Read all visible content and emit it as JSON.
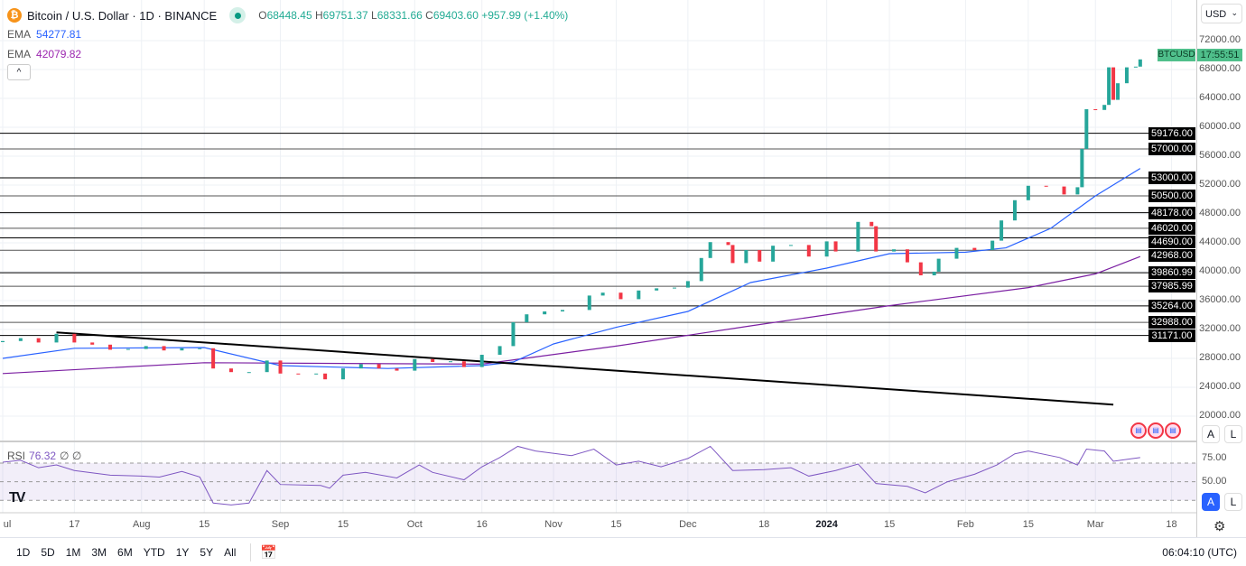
{
  "header": {
    "symbol_title": "Bitcoin / U.S. Dollar · 1D · BINANCE",
    "open_label": "O",
    "open": "68448.45",
    "high_label": "H",
    "high": "69751.37",
    "low_label": "L",
    "low": "68331.66",
    "close_label": "C",
    "close": "69403.60",
    "change": "+957.99 (+1.40%)",
    "ema1_label": "EMA",
    "ema1_value": "54277.81",
    "ema2_label": "EMA",
    "ema2_value": "42079.82",
    "collapse_icon": "chevron-up-icon",
    "collapse_glyph": "^"
  },
  "price_axis": {
    "currency": "USD",
    "currency_chevron": "⌄",
    "symbol_badge": "BTCUSD",
    "countdown": "17:55:51",
    "auto_label": "A",
    "log_label": "L"
  },
  "rsi": {
    "label": "RSI",
    "value": "76.32",
    "extra1": "∅",
    "extra2": "∅",
    "ticks": [
      "75.00",
      "50.00"
    ],
    "auto_label": "A",
    "log_label": "L"
  },
  "time_axis": {
    "labels": [
      {
        "text": "ul",
        "date": "2023-07-01"
      },
      {
        "text": "17",
        "date": "2023-07-17"
      },
      {
        "text": "Aug",
        "date": "2023-08-01"
      },
      {
        "text": "15",
        "date": "2023-08-15"
      },
      {
        "text": "Sep",
        "date": "2023-09-01"
      },
      {
        "text": "15",
        "date": "2023-09-15"
      },
      {
        "text": "Oct",
        "date": "2023-10-01"
      },
      {
        "text": "16",
        "date": "2023-10-16"
      },
      {
        "text": "Nov",
        "date": "2023-11-01"
      },
      {
        "text": "15",
        "date": "2023-11-15"
      },
      {
        "text": "Dec",
        "date": "2023-12-01"
      },
      {
        "text": "18",
        "date": "2023-12-18"
      },
      {
        "text": "2024",
        "date": "2024-01-01",
        "bold": true
      },
      {
        "text": "15",
        "date": "2024-01-15"
      },
      {
        "text": "Feb",
        "date": "2024-02-01"
      },
      {
        "text": "15",
        "date": "2024-02-15"
      },
      {
        "text": "Mar",
        "date": "2024-03-01"
      },
      {
        "text": "18",
        "date": "2024-03-18"
      }
    ]
  },
  "toolbar": {
    "ranges": [
      "1D",
      "5D",
      "1M",
      "3M",
      "6M",
      "YTD",
      "1Y",
      "5Y",
      "All"
    ],
    "date_range_icon": "calendar-goto-icon",
    "clock": "06:04:10 (UTC)"
  },
  "colors": {
    "up": "#26a69a",
    "down": "#f23645",
    "ema_fast": "#2962ff",
    "ema_slow": "#7b1fa2",
    "rsi": "#7e57c2",
    "trendline": "#000000"
  },
  "chart_data": {
    "type": "candlestick",
    "ylim": [
      20000,
      74000
    ],
    "price_ticks": [
      "72000.00",
      "68000.00",
      "64000.00",
      "60000.00",
      "56000.00",
      "52000.00",
      "48000.00",
      "44000.00",
      "40000.00",
      "36000.00",
      "32000.00",
      "28000.00",
      "24000.00",
      "20000.00"
    ],
    "closes": [
      [
        "2023-07-01",
        30400
      ],
      [
        "2023-07-05",
        30800
      ],
      [
        "2023-07-09",
        30200
      ],
      [
        "2023-07-13",
        31400
      ],
      [
        "2023-07-17",
        30200
      ],
      [
        "2023-07-21",
        29900
      ],
      [
        "2023-07-25",
        29200
      ],
      [
        "2023-07-29",
        29300
      ],
      [
        "2023-08-02",
        29700
      ],
      [
        "2023-08-06",
        29100
      ],
      [
        "2023-08-10",
        29400
      ],
      [
        "2023-08-14",
        29400
      ],
      [
        "2023-08-17",
        26600
      ],
      [
        "2023-08-21",
        26100
      ],
      [
        "2023-08-25",
        26100
      ],
      [
        "2023-08-29",
        27700
      ],
      [
        "2023-09-01",
        25900
      ],
      [
        "2023-09-05",
        25800
      ],
      [
        "2023-09-09",
        25900
      ],
      [
        "2023-09-11",
        25100
      ],
      [
        "2023-09-15",
        26600
      ],
      [
        "2023-09-19",
        27200
      ],
      [
        "2023-09-23",
        26600
      ],
      [
        "2023-09-27",
        26300
      ],
      [
        "2023-10-01",
        27900
      ],
      [
        "2023-10-05",
        27500
      ],
      [
        "2023-10-09",
        27600
      ],
      [
        "2023-10-12",
        26800
      ],
      [
        "2023-10-16",
        28500
      ],
      [
        "2023-10-20",
        29700
      ],
      [
        "2023-10-23",
        33000
      ],
      [
        "2023-10-26",
        34100
      ],
      [
        "2023-10-30",
        34500
      ],
      [
        "2023-11-03",
        34700
      ],
      [
        "2023-11-09",
        36700
      ],
      [
        "2023-11-12",
        37100
      ],
      [
        "2023-11-16",
        36200
      ],
      [
        "2023-11-20",
        37400
      ],
      [
        "2023-11-24",
        37700
      ],
      [
        "2023-11-28",
        37800
      ],
      [
        "2023-12-01",
        38700
      ],
      [
        "2023-12-04",
        41900
      ],
      [
        "2023-12-06",
        44100
      ],
      [
        "2023-12-10",
        43700
      ],
      [
        "2023-12-11",
        41200
      ],
      [
        "2023-12-14",
        43000
      ],
      [
        "2023-12-17",
        41400
      ],
      [
        "2023-12-20",
        43600
      ],
      [
        "2023-12-24",
        43700
      ],
      [
        "2023-12-28",
        42100
      ],
      [
        "2024-01-01",
        44200
      ],
      [
        "2024-01-03",
        42800
      ],
      [
        "2024-01-08",
        46900
      ],
      [
        "2024-01-11",
        46300
      ],
      [
        "2024-01-12",
        42800
      ],
      [
        "2024-01-16",
        43100
      ],
      [
        "2024-01-19",
        41300
      ],
      [
        "2024-01-22",
        39500
      ],
      [
        "2024-01-25",
        40000
      ],
      [
        "2024-01-26",
        41800
      ],
      [
        "2024-01-30",
        43300
      ],
      [
        "2024-02-03",
        43000
      ],
      [
        "2024-02-07",
        44300
      ],
      [
        "2024-02-09",
        47100
      ],
      [
        "2024-02-12",
        49900
      ],
      [
        "2024-02-15",
        51900
      ],
      [
        "2024-02-19",
        51800
      ],
      [
        "2024-02-23",
        50700
      ],
      [
        "2024-02-26",
        51700
      ],
      [
        "2024-02-27",
        57000
      ],
      [
        "2024-02-28",
        62500
      ],
      [
        "2024-03-01",
        62400
      ],
      [
        "2024-03-03",
        63100
      ],
      [
        "2024-03-04",
        68300
      ],
      [
        "2024-03-05",
        63800
      ],
      [
        "2024-03-06",
        66100
      ],
      [
        "2024-03-08",
        68300
      ],
      [
        "2024-03-10",
        68400
      ],
      [
        "2024-03-11",
        69400
      ]
    ],
    "ema_fast": [
      [
        "2023-07-01",
        28000
      ],
      [
        "2023-07-17",
        29400
      ],
      [
        "2023-08-15",
        29500
      ],
      [
        "2023-09-01",
        27000
      ],
      [
        "2023-09-25",
        26600
      ],
      [
        "2023-10-16",
        27000
      ],
      [
        "2023-10-23",
        27500
      ],
      [
        "2023-11-01",
        30000
      ],
      [
        "2023-11-15",
        32300
      ],
      [
        "2023-12-01",
        34500
      ],
      [
        "2023-12-15",
        38500
      ],
      [
        "2024-01-01",
        40500
      ],
      [
        "2024-01-15",
        42500
      ],
      [
        "2024-02-01",
        42700
      ],
      [
        "2024-02-10",
        43300
      ],
      [
        "2024-02-20",
        46000
      ],
      [
        "2024-03-01",
        50500
      ],
      [
        "2024-03-11",
        54300
      ]
    ],
    "ema_slow": [
      [
        "2023-07-01",
        25900
      ],
      [
        "2023-08-15",
        27400
      ],
      [
        "2023-10-16",
        27200
      ],
      [
        "2023-11-15",
        29700
      ],
      [
        "2023-12-15",
        32500
      ],
      [
        "2024-01-15",
        35300
      ],
      [
        "2024-02-15",
        37800
      ],
      [
        "2024-03-01",
        39700
      ],
      [
        "2024-03-11",
        42100
      ]
    ],
    "trendline": [
      [
        "2023-07-13",
        31600
      ],
      [
        "2024-03-05",
        21600
      ]
    ],
    "levels": [
      "59176.00",
      "57000.00",
      "53000.00",
      "50500.00",
      "48178.00",
      "46020.00",
      "44690.00",
      "42968.00",
      "39860.99",
      "37985.99",
      "35264.00",
      "32988.00",
      "31171.00"
    ],
    "rsi_bands": [
      70,
      50,
      30
    ],
    "rsi_series": [
      [
        "2023-07-01",
        71
      ],
      [
        "2023-07-05",
        73
      ],
      [
        "2023-07-09",
        65
      ],
      [
        "2023-07-13",
        68
      ],
      [
        "2023-07-17",
        62
      ],
      [
        "2023-07-25",
        57
      ],
      [
        "2023-08-01",
        56
      ],
      [
        "2023-08-05",
        55
      ],
      [
        "2023-08-10",
        61
      ],
      [
        "2023-08-14",
        55
      ],
      [
        "2023-08-17",
        27
      ],
      [
        "2023-08-21",
        25
      ],
      [
        "2023-08-25",
        27
      ],
      [
        "2023-08-29",
        62
      ],
      [
        "2023-09-01",
        47
      ],
      [
        "2023-09-10",
        46
      ],
      [
        "2023-09-12",
        43
      ],
      [
        "2023-09-15",
        57
      ],
      [
        "2023-09-20",
        60
      ],
      [
        "2023-09-27",
        54
      ],
      [
        "2023-10-02",
        68
      ],
      [
        "2023-10-05",
        60
      ],
      [
        "2023-10-12",
        52
      ],
      [
        "2023-10-16",
        66
      ],
      [
        "2023-10-20",
        76
      ],
      [
        "2023-10-24",
        88
      ],
      [
        "2023-10-28",
        83
      ],
      [
        "2023-11-05",
        78
      ],
      [
        "2023-11-10",
        85
      ],
      [
        "2023-11-15",
        68
      ],
      [
        "2023-11-20",
        72
      ],
      [
        "2023-11-25",
        66
      ],
      [
        "2023-12-01",
        75
      ],
      [
        "2023-12-06",
        88
      ],
      [
        "2023-12-11",
        62
      ],
      [
        "2023-12-18",
        63
      ],
      [
        "2023-12-24",
        65
      ],
      [
        "2023-12-28",
        56
      ],
      [
        "2024-01-03",
        62
      ],
      [
        "2024-01-08",
        69
      ],
      [
        "2024-01-12",
        48
      ],
      [
        "2024-01-19",
        45
      ],
      [
        "2024-01-23",
        38
      ],
      [
        "2024-01-28",
        50
      ],
      [
        "2024-02-03",
        58
      ],
      [
        "2024-02-08",
        68
      ],
      [
        "2024-02-12",
        80
      ],
      [
        "2024-02-15",
        83
      ],
      [
        "2024-02-22",
        76
      ],
      [
        "2024-02-26",
        68
      ],
      [
        "2024-02-28",
        85
      ],
      [
        "2024-03-03",
        83
      ],
      [
        "2024-03-05",
        72
      ],
      [
        "2024-03-08",
        74
      ],
      [
        "2024-03-11",
        76
      ]
    ]
  }
}
